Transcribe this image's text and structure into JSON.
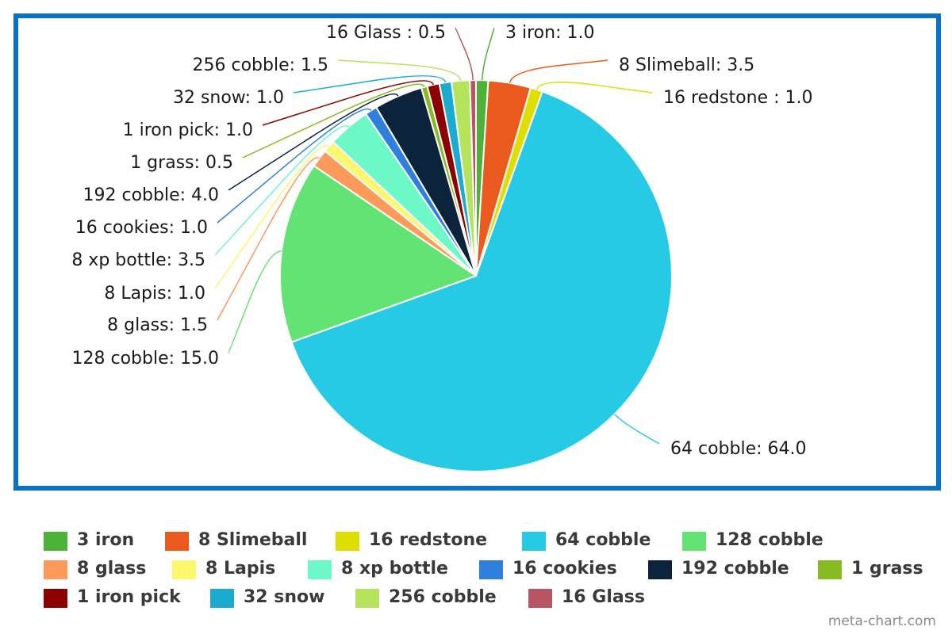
{
  "chart_data": {
    "type": "pie",
    "slices": [
      {
        "label": "3 iron",
        "value": 1.0,
        "color": "#4cb23a"
      },
      {
        "label": "8 Slimeball",
        "value": 3.5,
        "color": "#ea5a1e"
      },
      {
        "label": "16 redstone ",
        "value": 1.0,
        "color": "#dede00"
      },
      {
        "label": "64 cobble",
        "value": 64.0,
        "color": "#27cae4"
      },
      {
        "label": "128 cobble",
        "value": 15.0,
        "color": "#63e373"
      },
      {
        "label": "8 glass",
        "value": 1.5,
        "color": "#fb9a5b"
      },
      {
        "label": "8 Lapis",
        "value": 1.0,
        "color": "#fdf76e"
      },
      {
        "label": "8 xp bottle",
        "value": 3.5,
        "color": "#6cf8c7"
      },
      {
        "label": "16 cookies",
        "value": 1.0,
        "color": "#2f7fdd"
      },
      {
        "label": "192 cobble",
        "value": 4.0,
        "color": "#0c233c"
      },
      {
        "label": "1 grass",
        "value": 0.5,
        "color": "#88ba22"
      },
      {
        "label": "1 iron pick",
        "value": 1.0,
        "color": "#8c0000"
      },
      {
        "label": "32 snow",
        "value": 1.0,
        "color": "#1aabcf"
      },
      {
        "label": "256 cobble",
        "value": 1.5,
        "color": "#b6e35c"
      },
      {
        "label": "16 Glass ",
        "value": 0.5,
        "color": "#b85565"
      }
    ],
    "legend_labels": [
      [
        "3 iron",
        "8 Slimeball",
        "16 redstone",
        "64 cobble",
        "128 cobble"
      ],
      [
        "8 glass",
        "8 Lapis",
        "8 xp bottle",
        "16 cookies",
        "192 cobble",
        "1 grass"
      ],
      [
        "1 iron pick",
        "32 snow",
        "256 cobble",
        "16 Glass"
      ]
    ],
    "legend_placement": "bottom"
  },
  "credit": "meta-chart.com"
}
